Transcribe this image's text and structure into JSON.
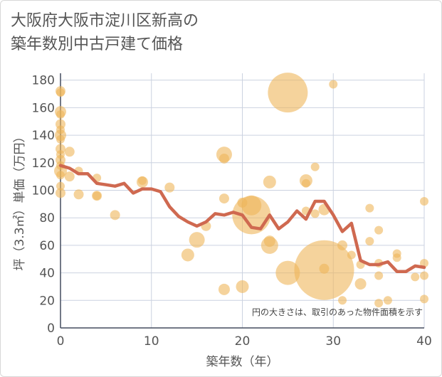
{
  "title_lines": [
    "大阪府大阪市淀川区新高の",
    "築年数別中古戸建て価格"
  ],
  "chart_data": {
    "type": "scatter",
    "xlabel": "築年数（年）",
    "ylabel": "坪（3.3㎡）単価（万円）",
    "xlim": [
      0,
      40
    ],
    "ylim": [
      0,
      185
    ],
    "xticks": [
      0,
      10,
      20,
      30,
      40
    ],
    "yticks": [
      0,
      20,
      40,
      60,
      80,
      100,
      120,
      140,
      160,
      180
    ],
    "annotation": "円の大きさは、取引のあった物件面積を示す",
    "colors": {
      "bubble": "#eeb55a",
      "line": "#cf6950",
      "grid": "#cbd2e0",
      "axis_text": "#555555"
    },
    "bubbles": [
      {
        "x": 0,
        "y": 172,
        "r": 7
      },
      {
        "x": 0,
        "y": 171,
        "r": 6
      },
      {
        "x": 0,
        "y": 157,
        "r": 8
      },
      {
        "x": 0,
        "y": 155,
        "r": 6
      },
      {
        "x": 0,
        "y": 148,
        "r": 7
      },
      {
        "x": 0,
        "y": 144,
        "r": 6
      },
      {
        "x": 0,
        "y": 140,
        "r": 8
      },
      {
        "x": 0,
        "y": 137,
        "r": 6
      },
      {
        "x": 0,
        "y": 130,
        "r": 7
      },
      {
        "x": 0,
        "y": 126,
        "r": 6
      },
      {
        "x": 0,
        "y": 122,
        "r": 7
      },
      {
        "x": 0,
        "y": 118,
        "r": 6
      },
      {
        "x": 0,
        "y": 114,
        "r": 9
      },
      {
        "x": 0,
        "y": 111,
        "r": 6
      },
      {
        "x": 0,
        "y": 103,
        "r": 6
      },
      {
        "x": 0,
        "y": 98,
        "r": 7
      },
      {
        "x": 1,
        "y": 128,
        "r": 7
      },
      {
        "x": 1,
        "y": 110,
        "r": 7
      },
      {
        "x": 2,
        "y": 114,
        "r": 6
      },
      {
        "x": 2,
        "y": 97,
        "r": 7
      },
      {
        "x": 4,
        "y": 109,
        "r": 6
      },
      {
        "x": 4,
        "y": 96,
        "r": 6
      },
      {
        "x": 4,
        "y": 96,
        "r": 7
      },
      {
        "x": 6,
        "y": 82,
        "r": 7
      },
      {
        "x": 9,
        "y": 106,
        "r": 8
      },
      {
        "x": 9,
        "y": 107,
        "r": 6
      },
      {
        "x": 12,
        "y": 102,
        "r": 7
      },
      {
        "x": 14,
        "y": 53,
        "r": 9
      },
      {
        "x": 15,
        "y": 64,
        "r": 11
      },
      {
        "x": 16,
        "y": 74,
        "r": 7
      },
      {
        "x": 18,
        "y": 126,
        "r": 11
      },
      {
        "x": 18,
        "y": 123,
        "r": 7
      },
      {
        "x": 18,
        "y": 94,
        "r": 7
      },
      {
        "x": 18,
        "y": 28,
        "r": 8
      },
      {
        "x": 20,
        "y": 91,
        "r": 7
      },
      {
        "x": 20,
        "y": 30,
        "r": 9
      },
      {
        "x": 21,
        "y": 89,
        "r": 14
      },
      {
        "x": 21,
        "y": 82,
        "r": 27
      },
      {
        "x": 23,
        "y": 106,
        "r": 9
      },
      {
        "x": 23,
        "y": 63,
        "r": 8
      },
      {
        "x": 23,
        "y": 60,
        "r": 12
      },
      {
        "x": 25,
        "y": 171,
        "r": 28
      },
      {
        "x": 25,
        "y": 40,
        "r": 17
      },
      {
        "x": 27,
        "y": 107,
        "r": 9
      },
      {
        "x": 27,
        "y": 105,
        "r": 6
      },
      {
        "x": 27,
        "y": 85,
        "r": 6
      },
      {
        "x": 28,
        "y": 117,
        "r": 6
      },
      {
        "x": 28,
        "y": 83,
        "r": 6
      },
      {
        "x": 29,
        "y": 42,
        "r": 42
      },
      {
        "x": 29,
        "y": 86,
        "r": 8
      },
      {
        "x": 29,
        "y": 43,
        "r": 7
      },
      {
        "x": 30,
        "y": 177,
        "r": 6
      },
      {
        "x": 31,
        "y": 60,
        "r": 7
      },
      {
        "x": 31,
        "y": 20,
        "r": 6
      },
      {
        "x": 32,
        "y": 53,
        "r": 6
      },
      {
        "x": 33,
        "y": 46,
        "r": 6
      },
      {
        "x": 33,
        "y": 32,
        "r": 8
      },
      {
        "x": 34,
        "y": 87,
        "r": 6
      },
      {
        "x": 34,
        "y": 63,
        "r": 6
      },
      {
        "x": 35,
        "y": 71,
        "r": 6
      },
      {
        "x": 35,
        "y": 47,
        "r": 6
      },
      {
        "x": 35,
        "y": 38,
        "r": 6
      },
      {
        "x": 35,
        "y": 18,
        "r": 6
      },
      {
        "x": 36,
        "y": 20,
        "r": 6
      },
      {
        "x": 37,
        "y": 54,
        "r": 6
      },
      {
        "x": 37,
        "y": 51,
        "r": 6
      },
      {
        "x": 39,
        "y": 37,
        "r": 6
      },
      {
        "x": 40,
        "y": 92,
        "r": 6
      },
      {
        "x": 40,
        "y": 47,
        "r": 6
      },
      {
        "x": 40,
        "y": 38,
        "r": 6
      },
      {
        "x": 40,
        "y": 21,
        "r": 6
      }
    ],
    "line": {
      "x": [
        0,
        1,
        2,
        3,
        4,
        5,
        6,
        7,
        8,
        9,
        10,
        11,
        12,
        13,
        14,
        15,
        16,
        17,
        18,
        19,
        20,
        21,
        22,
        23,
        24,
        25,
        26,
        27,
        28,
        29,
        30,
        31,
        32,
        33,
        34,
        35,
        36,
        37,
        38,
        39,
        40
      ],
      "y": [
        118,
        116,
        112,
        112,
        105,
        104,
        103,
        105,
        98,
        101,
        101,
        99,
        88,
        81,
        77,
        74,
        77,
        83,
        82,
        84,
        82,
        73,
        72,
        82,
        72,
        77,
        85,
        79,
        92,
        92,
        82,
        70,
        76,
        49,
        46,
        46,
        48,
        41,
        41,
        45,
        44
      ]
    }
  }
}
